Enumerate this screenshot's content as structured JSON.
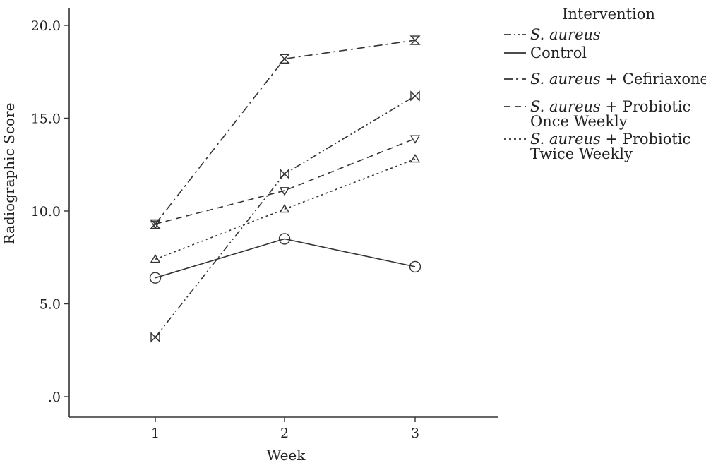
{
  "chart_data": {
    "type": "line",
    "title": "",
    "xlabel": "Week",
    "ylabel": "Radiographic Score",
    "categories": [
      "1",
      "2",
      "3"
    ],
    "ylim": [
      -1.0,
      21.0
    ],
    "yticks": [
      {
        "value": 0,
        "label": ".0"
      },
      {
        "value": 5,
        "label": "5.0"
      },
      {
        "value": 10,
        "label": "10.0"
      },
      {
        "value": 15,
        "label": "15.0"
      },
      {
        "value": 20,
        "label": "20.0"
      }
    ],
    "grid": false,
    "legend_position": "right",
    "legend_title": "Intervention",
    "series": [
      {
        "name_parts": [
          {
            "text": "S. aureus",
            "italic": true
          }
        ],
        "values": [
          3.2,
          12.0,
          16.2
        ],
        "dash": "dash-dot-dot",
        "marker": "bowtie",
        "color": "#333333"
      },
      {
        "name_parts": [
          {
            "text": "Control",
            "italic": false
          }
        ],
        "values": [
          6.4,
          8.5,
          7.0
        ],
        "dash": "solid",
        "marker": "circle",
        "color": "#333333"
      },
      {
        "name_parts": [
          {
            "text": "S. aureus",
            "italic": true
          },
          {
            "text": " + Cefiriaxone",
            "italic": false
          }
        ],
        "values": [
          9.3,
          18.2,
          19.2
        ],
        "dash": "dash-dot",
        "marker": "hourglass",
        "color": "#333333"
      },
      {
        "name_parts": [
          {
            "text": "S. aureus",
            "italic": true
          },
          {
            "text": " + Probiotic",
            "italic": false
          }
        ],
        "name_line2": "Once Weekly",
        "values": [
          9.3,
          11.1,
          13.9
        ],
        "dash": "dashed",
        "marker": "triangle-down",
        "color": "#333333"
      },
      {
        "name_parts": [
          {
            "text": "S. aureus",
            "italic": true
          },
          {
            "text": " + Probiotic",
            "italic": false
          }
        ],
        "name_line2": "Twice Weekly",
        "values": [
          7.4,
          10.1,
          12.8
        ],
        "dash": "dotted",
        "marker": "triangle-up",
        "color": "#333333"
      }
    ]
  }
}
